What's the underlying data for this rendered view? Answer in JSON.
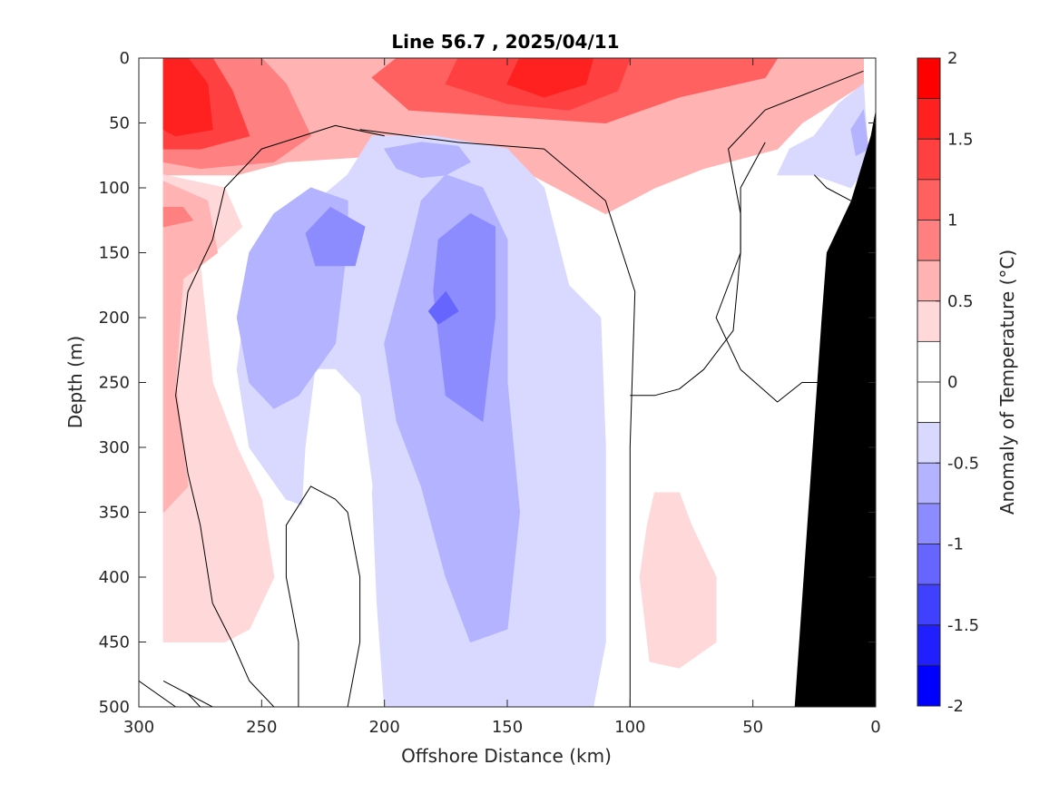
{
  "chart_data": {
    "type": "contour",
    "title": "Line 56.7 , 2025/04/11",
    "xlabel": "Offshore Distance (km)",
    "ylabel": "Depth (m)",
    "xlim": [
      300,
      0
    ],
    "ylim": [
      500,
      0
    ],
    "x_reversed": true,
    "y_reversed": true,
    "xticks": [
      300,
      250,
      200,
      150,
      100,
      50,
      0
    ],
    "yticks": [
      0,
      50,
      100,
      150,
      200,
      250,
      300,
      350,
      400,
      450,
      500
    ],
    "grid": false,
    "colorbar": {
      "label": "Anomaly of Temperature (°C)",
      "range": [
        -2,
        2
      ],
      "ticks": [
        2,
        1.5,
        1,
        0.5,
        0,
        -0.5,
        -1,
        -1.5,
        -2
      ],
      "levels": [
        {
          "from": 1.75,
          "to": 2.0,
          "color": "#ff0000"
        },
        {
          "from": 1.5,
          "to": 1.75,
          "color": "#ff2020"
        },
        {
          "from": 1.25,
          "to": 1.5,
          "color": "#ff4040"
        },
        {
          "from": 1.0,
          "to": 1.25,
          "color": "#ff6060"
        },
        {
          "from": 0.75,
          "to": 1.0,
          "color": "#ff8080"
        },
        {
          "from": 0.5,
          "to": 0.75,
          "color": "#ffb3b3"
        },
        {
          "from": 0.25,
          "to": 0.5,
          "color": "#ffd9d9"
        },
        {
          "from": 0.0,
          "to": 0.25,
          "color": "#ffffff"
        },
        {
          "from": -0.25,
          "to": 0.0,
          "color": "#ffffff"
        },
        {
          "from": -0.5,
          "to": -0.25,
          "color": "#d9d9ff"
        },
        {
          "from": -0.75,
          "to": -0.5,
          "color": "#b3b3ff"
        },
        {
          "from": -1.0,
          "to": -0.75,
          "color": "#8c8cff"
        },
        {
          "from": -1.25,
          "to": -1.0,
          "color": "#6666ff"
        },
        {
          "from": -1.5,
          "to": -1.25,
          "color": "#4040ff"
        },
        {
          "from": -1.75,
          "to": -1.5,
          "color": "#2020ff"
        },
        {
          "from": -2.0,
          "to": -1.75,
          "color": "#0000ff"
        }
      ]
    },
    "regions": [
      {
        "name": "surface-warm-layer",
        "color": "#ffb3b3",
        "points": [
          [
            290,
            0
          ],
          [
            5,
            0
          ],
          [
            5,
            20
          ],
          [
            30,
            50
          ],
          [
            40,
            70
          ],
          [
            70,
            85
          ],
          [
            90,
            100
          ],
          [
            110,
            120
          ],
          [
            150,
            80
          ],
          [
            200,
            75
          ],
          [
            240,
            80
          ],
          [
            260,
            90
          ],
          [
            285,
            90
          ],
          [
            290,
            90
          ]
        ]
      },
      {
        "name": "surface-warm-core-1",
        "color": "#ff8080",
        "points": [
          [
            290,
            0
          ],
          [
            250,
            0
          ],
          [
            240,
            20
          ],
          [
            230,
            60
          ],
          [
            245,
            80
          ],
          [
            275,
            85
          ],
          [
            290,
            80
          ]
        ]
      },
      {
        "name": "surface-warm-core-2",
        "color": "#ff6060",
        "points": [
          [
            195,
            0
          ],
          [
            40,
            0
          ],
          [
            45,
            15
          ],
          [
            80,
            30
          ],
          [
            110,
            50
          ],
          [
            150,
            45
          ],
          [
            190,
            40
          ],
          [
            205,
            15
          ]
        ]
      },
      {
        "name": "surface-warm-core-3",
        "color": "#ff4040",
        "points": [
          [
            290,
            0
          ],
          [
            270,
            0
          ],
          [
            262,
            25
          ],
          [
            255,
            60
          ],
          [
            275,
            70
          ],
          [
            290,
            70
          ]
        ]
      },
      {
        "name": "surface-warm-core-4",
        "color": "#ff4040",
        "points": [
          [
            170,
            0
          ],
          [
            100,
            0
          ],
          [
            105,
            25
          ],
          [
            125,
            40
          ],
          [
            150,
            35
          ],
          [
            175,
            20
          ]
        ]
      },
      {
        "name": "surface-warm-core-5",
        "color": "#ff2020",
        "points": [
          [
            290,
            0
          ],
          [
            280,
            0
          ],
          [
            272,
            20
          ],
          [
            270,
            55
          ],
          [
            285,
            60
          ],
          [
            290,
            55
          ]
        ]
      },
      {
        "name": "surface-warm-core-6",
        "color": "#ff2020",
        "points": [
          [
            145,
            0
          ],
          [
            115,
            0
          ],
          [
            118,
            20
          ],
          [
            135,
            30
          ],
          [
            150,
            20
          ]
        ]
      },
      {
        "name": "offshore-warm-column",
        "color": "#ffd9d9",
        "points": [
          [
            290,
            90
          ],
          [
            265,
            100
          ],
          [
            258,
            130
          ],
          [
            275,
            160
          ],
          [
            270,
            250
          ],
          [
            260,
            300
          ],
          [
            250,
            340
          ],
          [
            245,
            400
          ],
          [
            255,
            440
          ],
          [
            265,
            450
          ],
          [
            290,
            450
          ]
        ]
      },
      {
        "name": "offshore-warm-core",
        "color": "#ffb3b3",
        "points": [
          [
            290,
            95
          ],
          [
            272,
            110
          ],
          [
            268,
            150
          ],
          [
            282,
            170
          ],
          [
            285,
            250
          ],
          [
            280,
            330
          ],
          [
            290,
            350
          ]
        ]
      },
      {
        "name": "offshore-warm-spot",
        "color": "#ff8080",
        "points": [
          [
            290,
            115
          ],
          [
            282,
            115
          ],
          [
            278,
            125
          ],
          [
            290,
            130
          ]
        ]
      },
      {
        "name": "deep-warm-lens",
        "color": "#ffd9d9",
        "points": [
          [
            90,
            335
          ],
          [
            80,
            335
          ],
          [
            75,
            360
          ],
          [
            65,
            400
          ],
          [
            65,
            450
          ],
          [
            80,
            470
          ],
          [
            92,
            465
          ],
          [
            96,
            400
          ],
          [
            93,
            360
          ]
        ]
      },
      {
        "name": "main-cold-body",
        "color": "#d9d9ff",
        "points": [
          [
            205,
            60
          ],
          [
            180,
            60
          ],
          [
            150,
            70
          ],
          [
            135,
            100
          ],
          [
            125,
            175
          ],
          [
            112,
            200
          ],
          [
            110,
            300
          ],
          [
            110,
            450
          ],
          [
            115,
            500
          ],
          [
            200,
            500
          ],
          [
            203,
            420
          ],
          [
            205,
            330
          ],
          [
            225,
            350
          ],
          [
            240,
            340
          ],
          [
            255,
            300
          ],
          [
            260,
            240
          ],
          [
            255,
            170
          ],
          [
            240,
            130
          ],
          [
            215,
            90
          ]
        ]
      },
      {
        "name": "main-cold-gap",
        "color": "#ffffff",
        "points": [
          [
            228,
            240
          ],
          [
            220,
            240
          ],
          [
            210,
            260
          ],
          [
            205,
            330
          ],
          [
            210,
            400
          ],
          [
            215,
            480
          ],
          [
            235,
            480
          ],
          [
            235,
            400
          ],
          [
            232,
            300
          ]
        ]
      },
      {
        "name": "west-cold-core",
        "color": "#b3b3ff",
        "points": [
          [
            230,
            100
          ],
          [
            215,
            110
          ],
          [
            215,
            140
          ],
          [
            220,
            220
          ],
          [
            235,
            260
          ],
          [
            245,
            270
          ],
          [
            255,
            250
          ],
          [
            260,
            200
          ],
          [
            255,
            150
          ],
          [
            245,
            120
          ]
        ]
      },
      {
        "name": "west-cold-center",
        "color": "#8c8cff",
        "points": [
          [
            222,
            115
          ],
          [
            208,
            130
          ],
          [
            212,
            160
          ],
          [
            228,
            160
          ],
          [
            232,
            135
          ]
        ]
      },
      {
        "name": "center-cold-core",
        "color": "#b3b3ff",
        "points": [
          [
            175,
            90
          ],
          [
            160,
            100
          ],
          [
            150,
            140
          ],
          [
            150,
            250
          ],
          [
            145,
            350
          ],
          [
            150,
            440
          ],
          [
            165,
            450
          ],
          [
            175,
            400
          ],
          [
            185,
            330
          ],
          [
            195,
            280
          ],
          [
            200,
            220
          ],
          [
            190,
            150
          ],
          [
            185,
            110
          ]
        ]
      },
      {
        "name": "center-cold-center",
        "color": "#8c8cff",
        "points": [
          [
            165,
            120
          ],
          [
            155,
            130
          ],
          [
            155,
            200
          ],
          [
            160,
            280
          ],
          [
            175,
            260
          ],
          [
            180,
            180
          ],
          [
            178,
            140
          ]
        ]
      },
      {
        "name": "center-cold-spot",
        "color": "#6666ff",
        "points": [
          [
            175,
            180
          ],
          [
            170,
            195
          ],
          [
            178,
            205
          ],
          [
            182,
            195
          ]
        ]
      },
      {
        "name": "upper-cold-patch",
        "color": "#b3b3ff",
        "points": [
          [
            200,
            70
          ],
          [
            195,
            85
          ],
          [
            185,
            92
          ],
          [
            175,
            90
          ],
          [
            165,
            80
          ],
          [
            170,
            68
          ],
          [
            185,
            65
          ]
        ]
      },
      {
        "name": "nearshore-cold",
        "color": "#d9d9ff",
        "points": [
          [
            40,
            90
          ],
          [
            35,
            70
          ],
          [
            25,
            60
          ],
          [
            15,
            35
          ],
          [
            5,
            20
          ],
          [
            3,
            80
          ],
          [
            10,
            100
          ],
          [
            25,
            90
          ]
        ]
      },
      {
        "name": "nearshore-cold-core",
        "color": "#b3b3ff",
        "points": [
          [
            10,
            55
          ],
          [
            5,
            40
          ],
          [
            3,
            70
          ],
          [
            8,
            75
          ]
        ]
      }
    ],
    "zero_contours": [
      [
        [
          300,
          480
        ],
        [
          285,
          500
        ]
      ],
      [
        [
          280,
          490
        ],
        [
          275,
          500
        ]
      ],
      [
        [
          290,
          480
        ],
        [
          270,
          500
        ]
      ],
      [
        [
          215,
          500
        ],
        [
          210,
          450
        ],
        [
          210,
          400
        ],
        [
          215,
          350
        ],
        [
          220,
          340
        ],
        [
          230,
          330
        ],
        [
          240,
          360
        ],
        [
          240,
          400
        ],
        [
          235,
          450
        ],
        [
          235,
          500
        ]
      ],
      [
        [
          200,
          60
        ],
        [
          220,
          52
        ],
        [
          250,
          70
        ],
        [
          265,
          100
        ],
        [
          270,
          140
        ],
        [
          280,
          180
        ],
        [
          285,
          260
        ],
        [
          280,
          320
        ],
        [
          275,
          360
        ],
        [
          270,
          420
        ],
        [
          262,
          450
        ],
        [
          255,
          480
        ],
        [
          245,
          500
        ]
      ],
      [
        [
          100,
          500
        ],
        [
          100,
          300
        ],
        [
          98,
          180
        ],
        [
          110,
          110
        ],
        [
          135,
          70
        ],
        [
          170,
          65
        ],
        [
          210,
          55
        ]
      ],
      [
        [
          5,
          10
        ],
        [
          25,
          25
        ],
        [
          45,
          40
        ],
        [
          60,
          70
        ],
        [
          55,
          120
        ],
        [
          55,
          150
        ],
        [
          58,
          210
        ],
        [
          70,
          240
        ],
        [
          80,
          255
        ],
        [
          90,
          260
        ],
        [
          100,
          260
        ]
      ],
      [
        [
          45,
          65
        ],
        [
          55,
          100
        ],
        [
          55,
          150
        ],
        [
          65,
          200
        ],
        [
          55,
          240
        ],
        [
          40,
          265
        ],
        [
          30,
          250
        ],
        [
          10,
          250
        ]
      ],
      [
        [
          10,
          110
        ],
        [
          20,
          100
        ],
        [
          25,
          90
        ]
      ]
    ],
    "land_mask": [
      [
        33,
        500
      ],
      [
        22,
        200
      ],
      [
        20,
        150
      ],
      [
        10,
        110
      ],
      [
        2,
        60
      ],
      [
        0,
        40
      ],
      [
        0,
        500
      ]
    ]
  }
}
